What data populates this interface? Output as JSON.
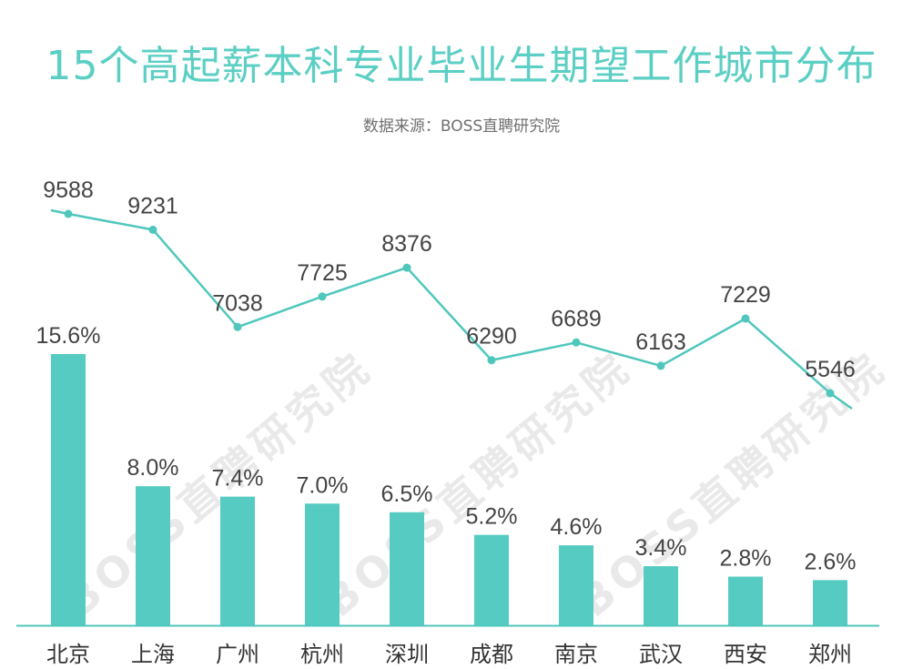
{
  "title": "15个高起薪本科专业毕业生期望工作城市分布",
  "subtitle": "数据来源：BOSS直聘研究院",
  "watermark": "BOSS直聘研究院",
  "colors": {
    "accent": "#5ccfc4",
    "line": "#4fc7bc",
    "bar": "#55cbc1",
    "axis": "#4fc7bc",
    "label": "#444444"
  },
  "chart_data": {
    "type": "bar",
    "categories": [
      "北京",
      "上海",
      "广州",
      "杭州",
      "深圳",
      "成都",
      "南京",
      "武汉",
      "西安",
      "郑州"
    ],
    "series": [
      {
        "type": "bar",
        "values": [
          15.6,
          8.0,
          7.4,
          7.0,
          6.5,
          5.2,
          4.6,
          3.4,
          2.8,
          2.6
        ],
        "labels": [
          "15.6%",
          "8.0%",
          "7.4%",
          "7.0%",
          "6.5%",
          "5.2%",
          "4.6%",
          "3.4%",
          "2.8%",
          "2.6%"
        ]
      },
      {
        "type": "line",
        "values": [
          9588,
          9231,
          7038,
          7725,
          8376,
          6290,
          6689,
          6163,
          7229,
          5546
        ]
      }
    ]
  }
}
